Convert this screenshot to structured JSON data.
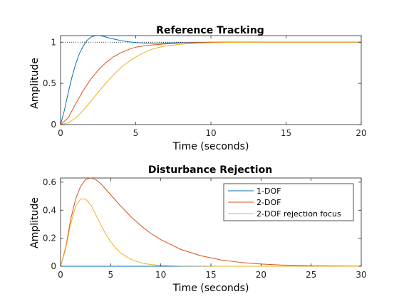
{
  "colors": {
    "1-DOF": "#0072bd",
    "2-DOF": "#d95319",
    "2-DOF rejection focus": "#edb120",
    "reference": "#000000",
    "axes": "#262626",
    "background": "#ffffff"
  },
  "chart_data": [
    {
      "type": "line",
      "title": "Reference Tracking",
      "xlabel": "Time (seconds)",
      "ylabel": "Amplitude",
      "xlim": [
        0,
        20
      ],
      "ylim": [
        0,
        1.08
      ],
      "xticks": [
        0,
        5,
        10,
        15,
        20
      ],
      "yticks": [
        0,
        0.5,
        1
      ],
      "ytick_labels": [
        "0",
        "0.5",
        "1"
      ],
      "grid": false,
      "reference_line": {
        "y": 1,
        "style": "dotted"
      },
      "series": [
        {
          "key": "1-DOF",
          "x": [
            0,
            0.25,
            0.5,
            0.75,
            1,
            1.25,
            1.5,
            1.75,
            2,
            2.25,
            2.5,
            2.75,
            3,
            3.25,
            3.5,
            4,
            4.5,
            5,
            5.5,
            6,
            7,
            8,
            9,
            10,
            12,
            14,
            16,
            18,
            20
          ],
          "y": [
            0,
            0.17,
            0.38,
            0.57,
            0.73,
            0.86,
            0.95,
            1.02,
            1.06,
            1.075,
            1.08,
            1.075,
            1.065,
            1.05,
            1.04,
            1.02,
            1.005,
            0.995,
            0.99,
            0.988,
            0.99,
            0.995,
            0.998,
            1.0,
            1.0,
            1.0,
            1.0,
            1.0,
            1.0
          ]
        },
        {
          "key": "2-DOF",
          "x": [
            0,
            0.5,
            1,
            1.5,
            2,
            2.5,
            3,
            3.5,
            4,
            4.5,
            5,
            5.5,
            6,
            7,
            8,
            9,
            10,
            12,
            14,
            16,
            18,
            20
          ],
          "y": [
            0,
            0.08,
            0.25,
            0.41,
            0.55,
            0.66,
            0.75,
            0.82,
            0.87,
            0.91,
            0.94,
            0.955,
            0.965,
            0.98,
            0.99,
            0.995,
            0.998,
            1.0,
            1.0,
            1.0,
            1.0,
            1.0
          ]
        },
        {
          "key": "2-DOF rejection focus",
          "x": [
            0,
            0.5,
            1,
            1.5,
            2,
            2.5,
            3,
            3.5,
            4,
            4.5,
            5,
            5.5,
            6,
            6.5,
            7,
            8,
            9,
            10,
            12,
            14,
            16,
            18,
            20
          ],
          "y": [
            0,
            0.02,
            0.08,
            0.17,
            0.28,
            0.39,
            0.5,
            0.6,
            0.69,
            0.76,
            0.82,
            0.87,
            0.91,
            0.935,
            0.955,
            0.975,
            0.987,
            0.994,
            0.999,
            1.0,
            1.0,
            1.0,
            1.0
          ]
        }
      ]
    },
    {
      "type": "line",
      "title": "Disturbance Rejection",
      "xlabel": "Time (seconds)",
      "ylabel": "Amplitude",
      "xlim": [
        0,
        30
      ],
      "ylim": [
        0,
        0.63
      ],
      "xticks": [
        0,
        5,
        10,
        15,
        20,
        25,
        30
      ],
      "yticks": [
        0,
        0.2,
        0.4,
        0.6
      ],
      "ytick_labels": [
        "0",
        "0.2",
        "0.4",
        "0.6"
      ],
      "grid": false,
      "legend": {
        "location": "top-right",
        "entries": [
          "1-DOF",
          "2-DOF",
          "2-DOF rejection focus"
        ]
      },
      "series": [
        {
          "key": "1-DOF",
          "x": [
            0,
            30
          ],
          "y": [
            0,
            0
          ]
        },
        {
          "key": "2-DOF",
          "x": [
            0,
            0.5,
            1,
            1.5,
            2,
            2.5,
            3,
            3.5,
            4,
            5,
            6,
            7,
            8,
            9,
            10,
            12,
            14,
            16,
            18,
            20,
            22,
            25,
            30
          ],
          "y": [
            0,
            0.13,
            0.33,
            0.48,
            0.57,
            0.62,
            0.63,
            0.62,
            0.59,
            0.51,
            0.43,
            0.355,
            0.29,
            0.235,
            0.19,
            0.12,
            0.075,
            0.045,
            0.027,
            0.016,
            0.009,
            0.004,
            0.001
          ]
        },
        {
          "key": "2-DOF rejection focus",
          "x": [
            0,
            0.5,
            1,
            1.5,
            2,
            2.5,
            3,
            3.5,
            4,
            4.5,
            5,
            5.5,
            6,
            7,
            8,
            9,
            10,
            12,
            14,
            16,
            20,
            25,
            30
          ],
          "y": [
            0,
            0.12,
            0.3,
            0.43,
            0.48,
            0.48,
            0.44,
            0.37,
            0.3,
            0.23,
            0.175,
            0.13,
            0.095,
            0.05,
            0.025,
            0.012,
            0.006,
            0.002,
            0.001,
            0,
            0,
            0,
            0
          ]
        }
      ]
    }
  ]
}
